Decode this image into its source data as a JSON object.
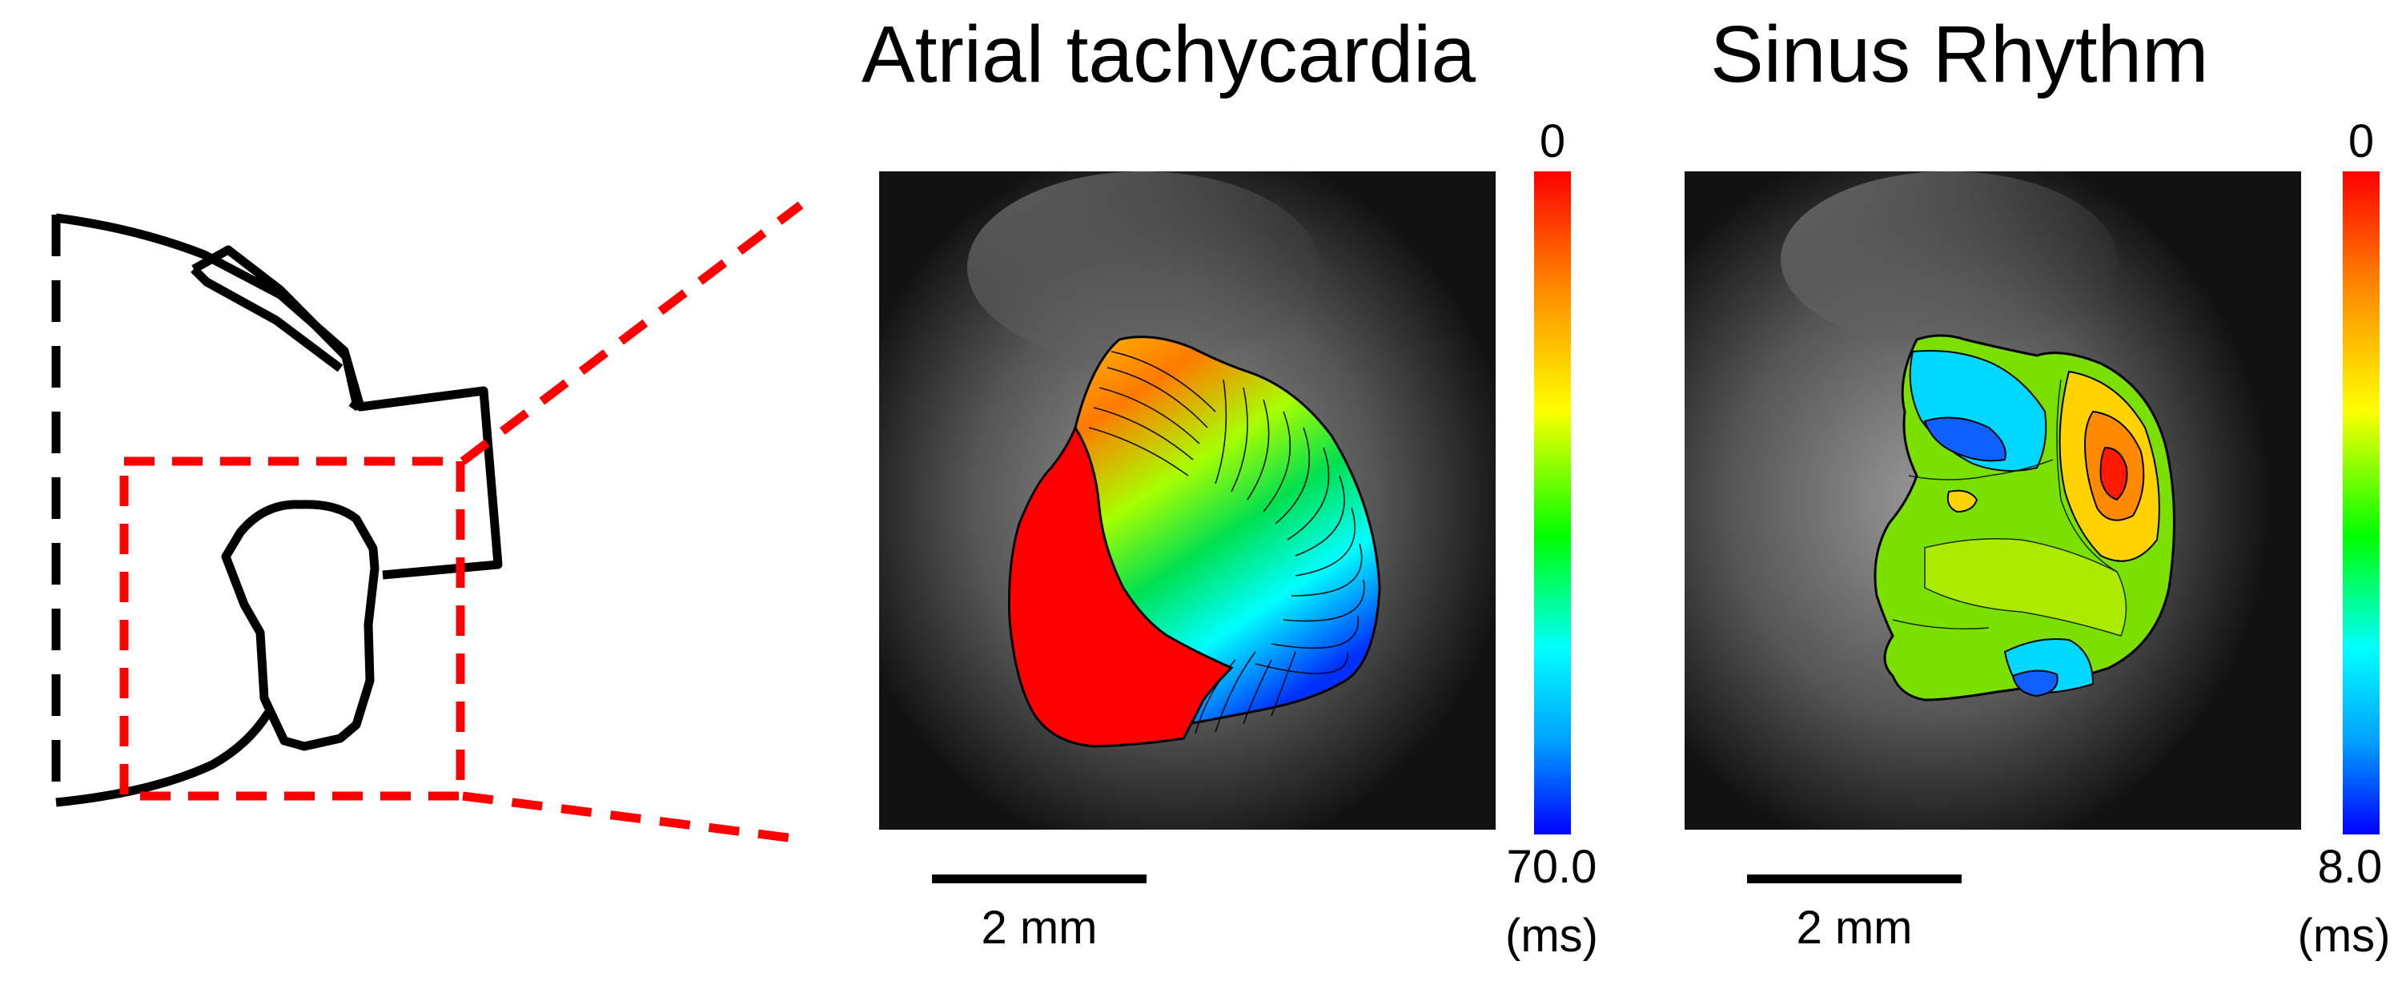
{
  "panels": {
    "left": {
      "title": "Atrial tachycardia",
      "colorbar_top": "0",
      "colorbar_bottom": "70.0",
      "unit": "(ms)",
      "scalebar_label": "2 mm"
    },
    "right": {
      "title": "Sinus Rhythm",
      "colorbar_top": "0",
      "colorbar_bottom": "8.0",
      "unit": "(ms)",
      "scalebar_label": "2 mm"
    }
  },
  "colors": {
    "outline": "#000000",
    "inset_box": "#ff0000"
  }
}
